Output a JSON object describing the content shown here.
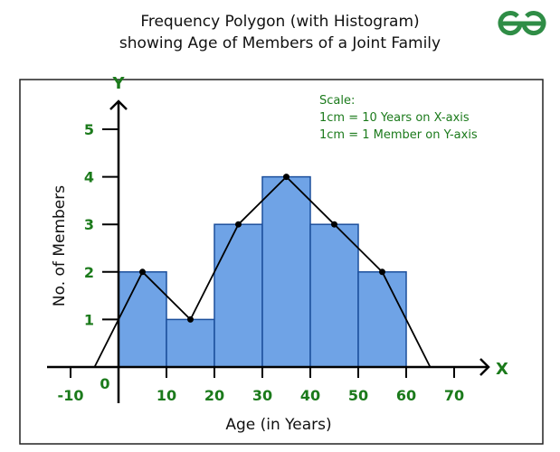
{
  "chart_data": {
    "type": "bar",
    "title_lines": [
      "Frequency Polygon (with Histogram)",
      "showing Age of Members of a Joint Family"
    ],
    "xlabel": "Age (in Years)",
    "ylabel": "No. of Members",
    "x_axis_letter": "X",
    "y_axis_letter": "Y",
    "origin_label": "0",
    "xlim": [
      -10,
      70
    ],
    "ylim": [
      0,
      5
    ],
    "x_ticks": [
      -10,
      10,
      20,
      30,
      40,
      50,
      60,
      70
    ],
    "y_ticks": [
      1,
      2,
      3,
      4,
      5
    ],
    "grid": false,
    "histogram": {
      "bins": [
        [
          0,
          10
        ],
        [
          10,
          20
        ],
        [
          20,
          30
        ],
        [
          30,
          40
        ],
        [
          40,
          50
        ],
        [
          50,
          60
        ]
      ],
      "values": [
        2,
        1,
        3,
        4,
        3,
        2
      ]
    },
    "polygon": {
      "x": [
        -5,
        5,
        15,
        25,
        35,
        45,
        55,
        65
      ],
      "y": [
        0,
        2,
        1,
        3,
        4,
        3,
        2,
        0
      ],
      "marked_points": [
        1,
        2,
        3,
        4,
        5,
        6
      ]
    },
    "scale_note": [
      "Scale:",
      "1cm = 10 Years on X-axis",
      "1cm = 1 Member on Y-axis"
    ],
    "colors": {
      "bar_fill": "#6fa3e6",
      "bar_stroke": "#1c4f9c",
      "label_green": "#1b7a1b",
      "line": "#000000",
      "logo": "#2f8d46"
    }
  },
  "logo": {
    "name": "GeeksforGeeks logo",
    "icon": "gfg-logo"
  }
}
